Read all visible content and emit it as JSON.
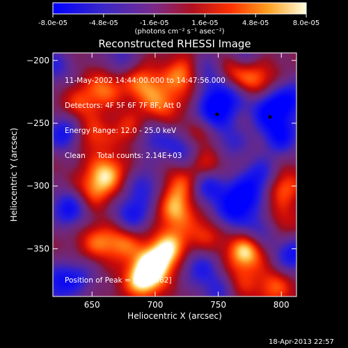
{
  "colorbar": {
    "tick_labels": [
      "-8.0e-05",
      "-4.8e-05",
      "-1.6e-05",
      "1.6e-05",
      "4.8e-05",
      "8.0e-05"
    ],
    "unit_label": "(photons cm⁻² s⁻¹ asec⁻²)",
    "range": [
      -8e-05,
      8e-05
    ]
  },
  "header": {
    "line1": "11-May-2002 14:44:00.000 to 14:47:56.000",
    "line2": "Detectors: 4F 5F 6F 7F 8F, Att 0",
    "line3": "Energy Range: 12.0 - 25.0 keV",
    "line4": "Clean     Total counts: 2.14E+03"
  },
  "peak_label": "Position of Peak = [693,-362]",
  "timestamp": "18-Apr-2013 22:57",
  "chart_data": {
    "type": "heatmap",
    "title": "Reconstructed RHESSI Image",
    "xlabel": "Heliocentric X (arcsec)",
    "ylabel": "Heliocentric Y (arcsec)",
    "xlim": [
      619,
      812
    ],
    "ylim": [
      -388,
      -194
    ],
    "x_ticks": [
      650,
      700,
      750,
      800
    ],
    "y_ticks": [
      -200,
      -250,
      -300,
      -350
    ],
    "colorscale": [
      "#0000ff",
      "#5a30a8",
      "#7a2a8a",
      "#b01010",
      "#ff2000",
      "#ff7a10",
      "#ffd060",
      "#ffffff"
    ],
    "peak": [
      693,
      -362
    ],
    "markers": [
      {
        "x": 749,
        "y": -243
      },
      {
        "x": 791,
        "y": -245
      }
    ],
    "blobs": [
      {
        "x": 700,
        "y": -362,
        "v": 1.0
      },
      {
        "x": 690,
        "y": -375,
        "v": 0.95
      },
      {
        "x": 712,
        "y": -348,
        "v": 0.75
      },
      {
        "x": 716,
        "y": -320,
        "v": 0.7
      },
      {
        "x": 720,
        "y": -300,
        "v": 0.6
      },
      {
        "x": 662,
        "y": -290,
        "v": 0.8
      },
      {
        "x": 650,
        "y": -305,
        "v": 0.55
      },
      {
        "x": 654,
        "y": -345,
        "v": 0.55
      },
      {
        "x": 675,
        "y": -345,
        "v": 0.6
      },
      {
        "x": 650,
        "y": -260,
        "v": 0.5
      },
      {
        "x": 660,
        "y": -222,
        "v": 0.6
      },
      {
        "x": 690,
        "y": -218,
        "v": 0.65
      },
      {
        "x": 705,
        "y": -235,
        "v": 0.6
      },
      {
        "x": 722,
        "y": -212,
        "v": 0.75
      },
      {
        "x": 735,
        "y": -257,
        "v": 0.55
      },
      {
        "x": 740,
        "y": -283,
        "v": 0.5
      },
      {
        "x": 760,
        "y": -210,
        "v": 0.7
      },
      {
        "x": 780,
        "y": -215,
        "v": 0.6
      },
      {
        "x": 800,
        "y": -300,
        "v": 0.7
      },
      {
        "x": 798,
        "y": -330,
        "v": 0.5
      },
      {
        "x": 772,
        "y": -352,
        "v": 0.95
      },
      {
        "x": 765,
        "y": -378,
        "v": 0.5
      },
      {
        "x": 740,
        "y": -338,
        "v": 0.45
      },
      {
        "x": 680,
        "y": -255,
        "v": 0.45
      },
      {
        "x": 795,
        "y": -380,
        "v": 0.55
      },
      {
        "x": 640,
        "y": -235,
        "v": 0.45
      },
      {
        "x": 745,
        "y": -243,
        "v": -1.0
      },
      {
        "x": 757,
        "y": -228,
        "v": -0.9
      },
      {
        "x": 790,
        "y": -240,
        "v": -1.0
      },
      {
        "x": 800,
        "y": -260,
        "v": -0.9
      },
      {
        "x": 808,
        "y": -230,
        "v": -0.8
      },
      {
        "x": 628,
        "y": -258,
        "v": -0.85
      },
      {
        "x": 632,
        "y": -318,
        "v": -0.9
      },
      {
        "x": 623,
        "y": -378,
        "v": -0.75
      },
      {
        "x": 682,
        "y": -323,
        "v": -0.8
      },
      {
        "x": 692,
        "y": -300,
        "v": -0.6
      },
      {
        "x": 698,
        "y": -262,
        "v": -0.6
      },
      {
        "x": 723,
        "y": -270,
        "v": -0.7
      },
      {
        "x": 742,
        "y": -300,
        "v": -0.85
      },
      {
        "x": 760,
        "y": -265,
        "v": -0.55
      },
      {
        "x": 770,
        "y": -308,
        "v": -0.95
      },
      {
        "x": 785,
        "y": -292,
        "v": -0.8
      },
      {
        "x": 760,
        "y": -322,
        "v": -0.7
      },
      {
        "x": 785,
        "y": -335,
        "v": -0.75
      },
      {
        "x": 735,
        "y": -365,
        "v": -0.65
      },
      {
        "x": 752,
        "y": -383,
        "v": -0.7
      },
      {
        "x": 809,
        "y": -355,
        "v": -0.85
      },
      {
        "x": 742,
        "y": -210,
        "v": -0.7
      },
      {
        "x": 770,
        "y": -196,
        "v": -0.5
      },
      {
        "x": 620,
        "y": -205,
        "v": -0.6
      },
      {
        "x": 640,
        "y": -372,
        "v": -0.5
      },
      {
        "x": 672,
        "y": -198,
        "v": -0.5
      }
    ]
  }
}
